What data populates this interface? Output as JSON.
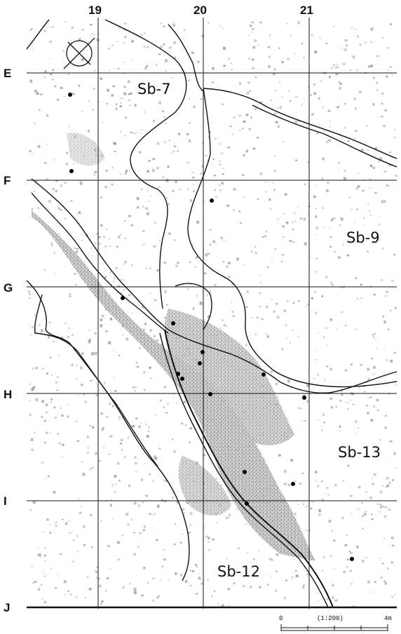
{
  "columns": [
    {
      "label": "19",
      "x": 19
    },
    {
      "label": "20",
      "x": 20
    },
    {
      "label": "21",
      "x": 21
    }
  ],
  "rows": [
    {
      "label": "E"
    },
    {
      "label": "F"
    },
    {
      "label": "G"
    },
    {
      "label": "H"
    },
    {
      "label": "I"
    },
    {
      "label": "J"
    }
  ],
  "features": [
    {
      "id": "sb7",
      "label": "Sb-7"
    },
    {
      "id": "sb9",
      "label": "Sb-9"
    },
    {
      "id": "sb13",
      "label": "Sb-13"
    },
    {
      "id": "sb12",
      "label": "Sb-12"
    }
  ],
  "scale": {
    "start": "0",
    "ratio": "(1:200)",
    "end": "4m"
  },
  "colors": {
    "gravel": "#9a9a9a",
    "line": "#111111",
    "point": "#000000"
  }
}
